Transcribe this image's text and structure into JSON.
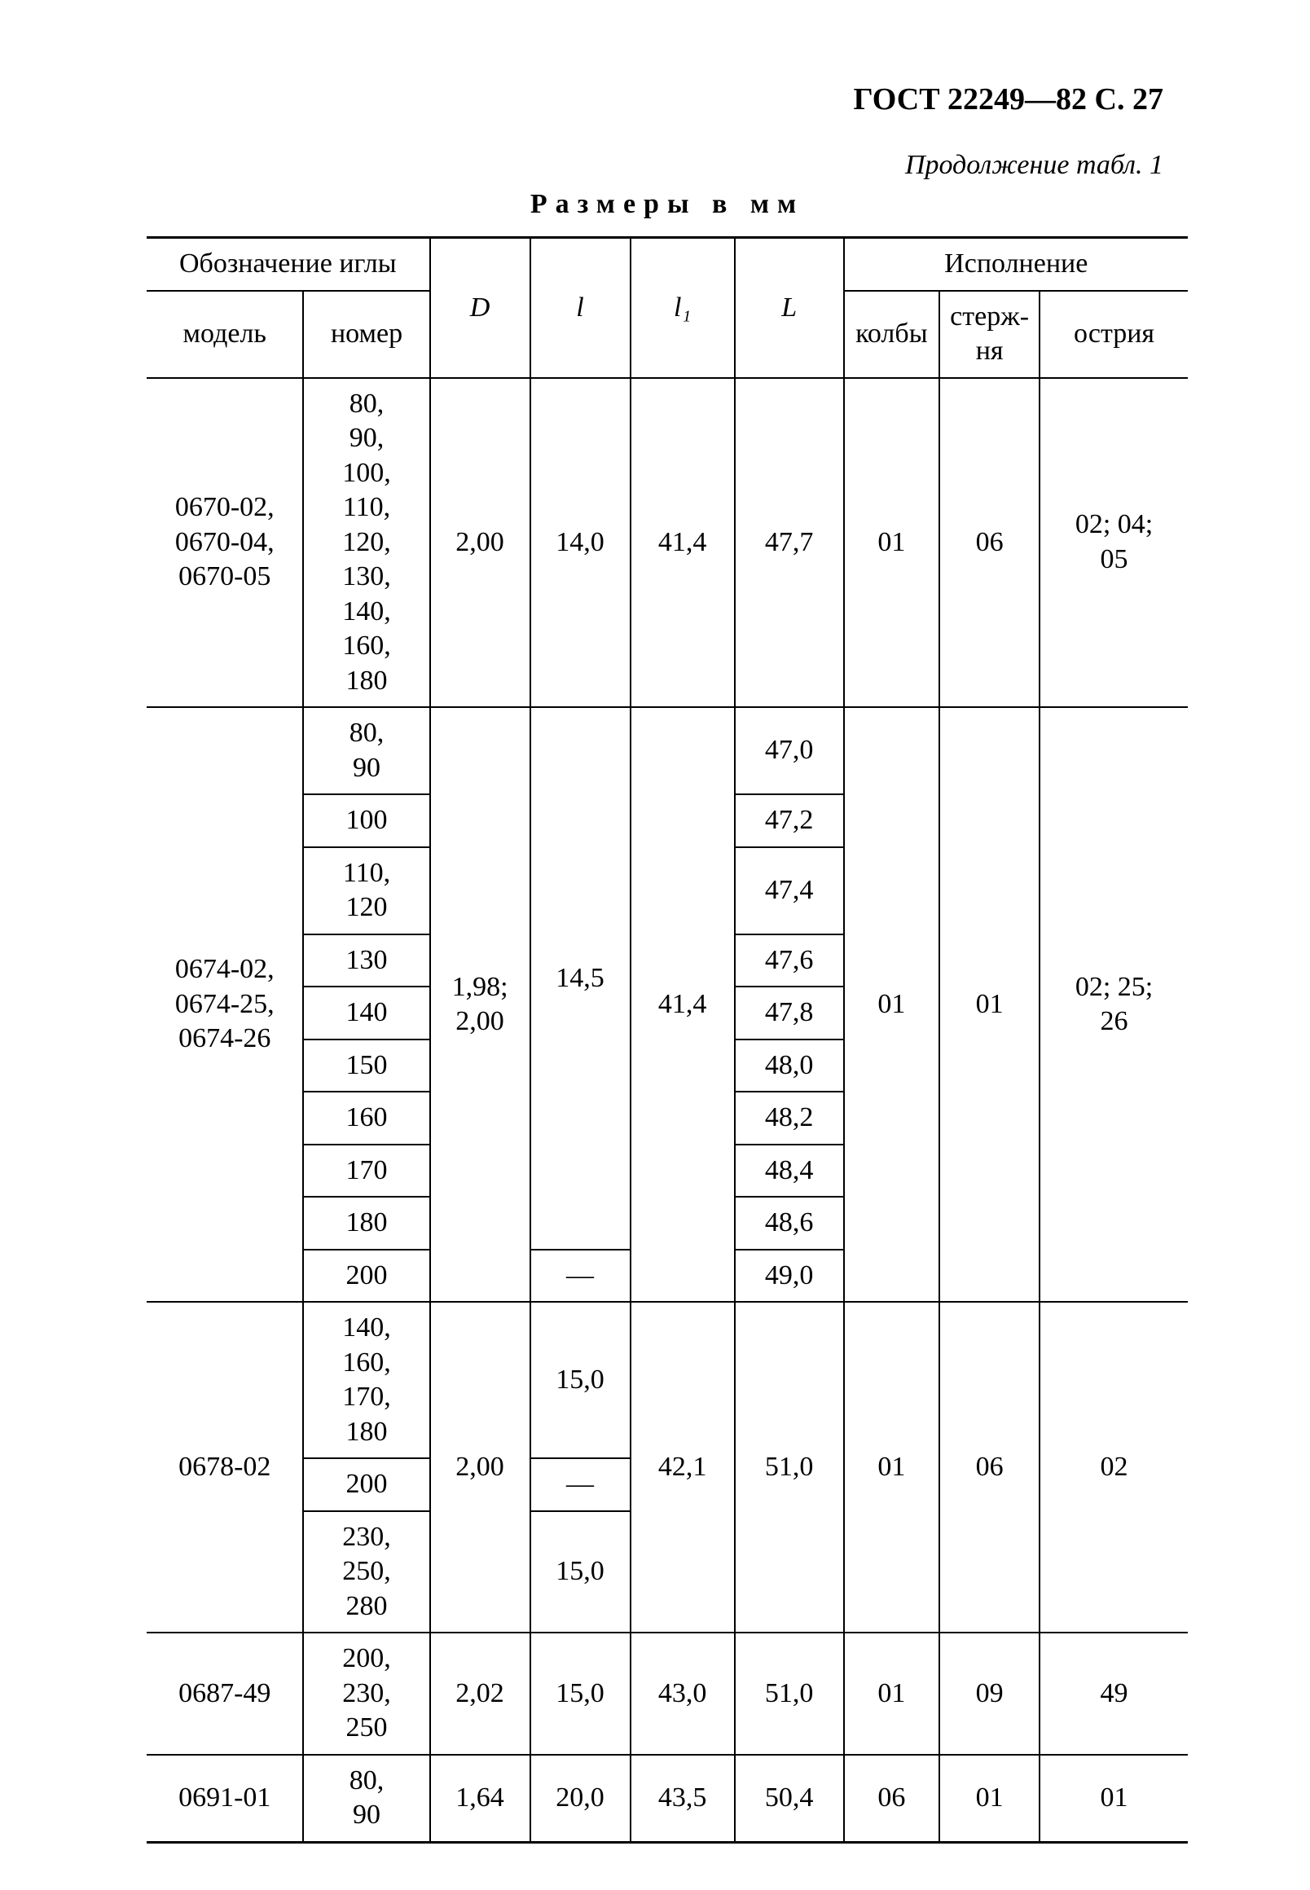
{
  "header": "ГОСТ 22249—82 С. 27",
  "continuation": "Продолжение табл. 1",
  "dimensions_title": "Размеры в мм",
  "head": {
    "oboz": "Обозначение иглы",
    "D": "D",
    "l": "l",
    "l1": "l₁",
    "L": "L",
    "isp": "Исполнение",
    "model": "модель",
    "nomer": "номер",
    "kolby": "колбы",
    "sterzh": "стерж-\nня",
    "ostriya": "острия"
  },
  "g1": {
    "model": "0670-02,\n0670-04,\n0670-05",
    "nomer": "80,\n90,\n100,\n110,\n120,\n130,\n140,\n160,\n180",
    "D": "2,00",
    "l": "14,0",
    "l1": "41,4",
    "L": "47,7",
    "kolby": "01",
    "sterzh": "06",
    "ostriya": "02; 04;\n05"
  },
  "g2": {
    "model": "0674-02,\n0674-25,\n0674-26",
    "D": "1,98;\n2,00",
    "l_main": "14,5",
    "l_dash": "—",
    "l1": "41,4",
    "kolby": "01",
    "sterzh": "01",
    "ostriya": "02; 25;\n26",
    "rows": [
      {
        "nomer": "80,\n90",
        "L": "47,0"
      },
      {
        "nomer": "100",
        "L": "47,2"
      },
      {
        "nomer": "110,\n120",
        "L": "47,4"
      },
      {
        "nomer": "130",
        "L": "47,6"
      },
      {
        "nomer": "140",
        "L": "47,8"
      },
      {
        "nomer": "150",
        "L": "48,0"
      },
      {
        "nomer": "160",
        "L": "48,2"
      },
      {
        "nomer": "170",
        "L": "48,4"
      },
      {
        "nomer": "180",
        "L": "48,6"
      },
      {
        "nomer": "200",
        "L": "49,0"
      }
    ]
  },
  "g3": {
    "model": "0678-02",
    "D": "2,00",
    "l1": "42,1",
    "L": "51,0",
    "kolby": "01",
    "sterzh": "06",
    "ostriya": "02",
    "rows": [
      {
        "nomer": "140,\n160,\n170,\n180",
        "l": "15,0"
      },
      {
        "nomer": "200",
        "l": "—"
      },
      {
        "nomer": "230,\n250,\n280",
        "l": "15,0"
      }
    ]
  },
  "g4": {
    "model": "0687-49",
    "nomer": "200,\n230,\n250",
    "D": "2,02",
    "l": "15,0",
    "l1": "43,0",
    "L": "51,0",
    "kolby": "01",
    "sterzh": "09",
    "ostriya": "49"
  },
  "g5": {
    "model": "0691-01",
    "nomer": "80,\n90",
    "D": "1,64",
    "l": "20,0",
    "l1": "43,5",
    "L": "50,4",
    "kolby": "06",
    "sterzh": "01",
    "ostriya": "01"
  }
}
